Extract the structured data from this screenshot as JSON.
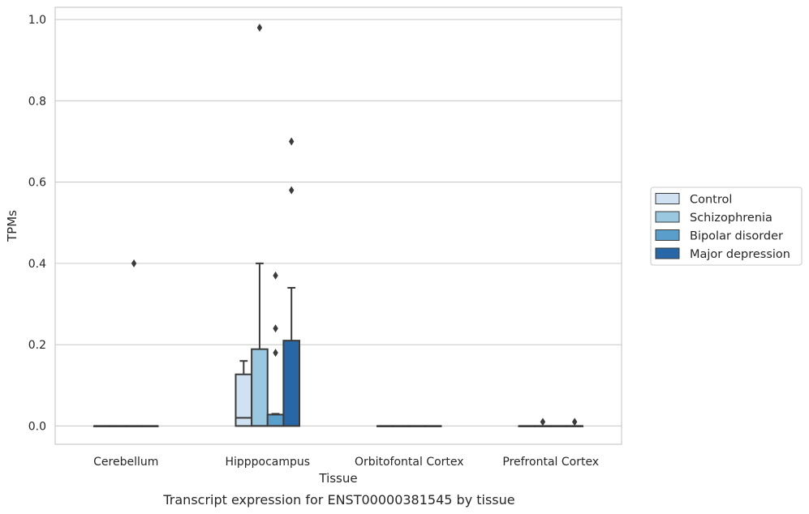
{
  "chart_data": {
    "type": "box",
    "categories": [
      "Cerebellum",
      "Hipppocampus",
      "Orbitofontal Cortex",
      "Prefrontal Cortex"
    ],
    "xlabel": "Tissue",
    "ylabel": "TPMs",
    "caption": "Transcript expression for ENST00000381545 by tissue",
    "ylim": [
      -0.045,
      1.03
    ],
    "yticks": [
      0.0,
      0.2,
      0.4,
      0.6,
      0.8,
      1.0
    ],
    "ytick_labels": [
      "0.0",
      "0.2",
      "0.4",
      "0.6",
      "0.8",
      "1.0"
    ],
    "grid": true,
    "legend_position": "right",
    "series": [
      {
        "name": "Control",
        "color": "#d0e1f2",
        "boxes": [
          {
            "q1": 0,
            "median": 0,
            "q3": 0,
            "whisker_low": 0,
            "whisker_high": 0,
            "outliers": []
          },
          {
            "q1": 0,
            "median": 0.02,
            "q3": 0.127,
            "whisker_low": 0,
            "whisker_high": 0.16,
            "outliers": []
          },
          {
            "q1": 0,
            "median": 0,
            "q3": 0,
            "whisker_low": 0,
            "whisker_high": 0,
            "outliers": []
          },
          {
            "q1": 0,
            "median": 0,
            "q3": 0,
            "whisker_low": 0,
            "whisker_high": 0,
            "outliers": []
          }
        ]
      },
      {
        "name": "Schizophrenia",
        "color": "#9ac8e0",
        "boxes": [
          {
            "q1": 0,
            "median": 0,
            "q3": 0,
            "whisker_low": 0,
            "whisker_high": 0,
            "outliers": []
          },
          {
            "q1": 0,
            "median": 0,
            "q3": 0.189,
            "whisker_low": 0,
            "whisker_high": 0.4,
            "outliers": [
              0.98
            ]
          },
          {
            "q1": 0,
            "median": 0,
            "q3": 0,
            "whisker_low": 0,
            "whisker_high": 0,
            "outliers": []
          },
          {
            "q1": 0,
            "median": 0,
            "q3": 0,
            "whisker_low": 0,
            "whisker_high": 0,
            "outliers": [
              0.01
            ]
          }
        ]
      },
      {
        "name": "Bipolar disorder",
        "color": "#5a9ecc",
        "boxes": [
          {
            "q1": 0,
            "median": 0,
            "q3": 0,
            "whisker_low": 0,
            "whisker_high": 0,
            "outliers": [
              0.4
            ]
          },
          {
            "q1": 0,
            "median": 0,
            "q3": 0.028,
            "whisker_low": 0,
            "whisker_high": 0.03,
            "outliers": [
              0.18,
              0.24,
              0.37
            ]
          },
          {
            "q1": 0,
            "median": 0,
            "q3": 0,
            "whisker_low": 0,
            "whisker_high": 0,
            "outliers": []
          },
          {
            "q1": 0,
            "median": 0,
            "q3": 0,
            "whisker_low": 0,
            "whisker_high": 0,
            "outliers": []
          }
        ]
      },
      {
        "name": "Major depression",
        "color": "#2767a8",
        "boxes": [
          {
            "q1": 0,
            "median": 0,
            "q3": 0,
            "whisker_low": 0,
            "whisker_high": 0,
            "outliers": []
          },
          {
            "q1": 0,
            "median": 0,
            "q3": 0.21,
            "whisker_low": 0,
            "whisker_high": 0.34,
            "outliers": [
              0.58,
              0.7
            ]
          },
          {
            "q1": 0,
            "median": 0,
            "q3": 0,
            "whisker_low": 0,
            "whisker_high": 0,
            "outliers": []
          },
          {
            "q1": 0,
            "median": 0,
            "q3": 0,
            "whisker_low": 0,
            "whisker_high": 0,
            "outliers": [
              0.01
            ]
          }
        ]
      }
    ]
  }
}
